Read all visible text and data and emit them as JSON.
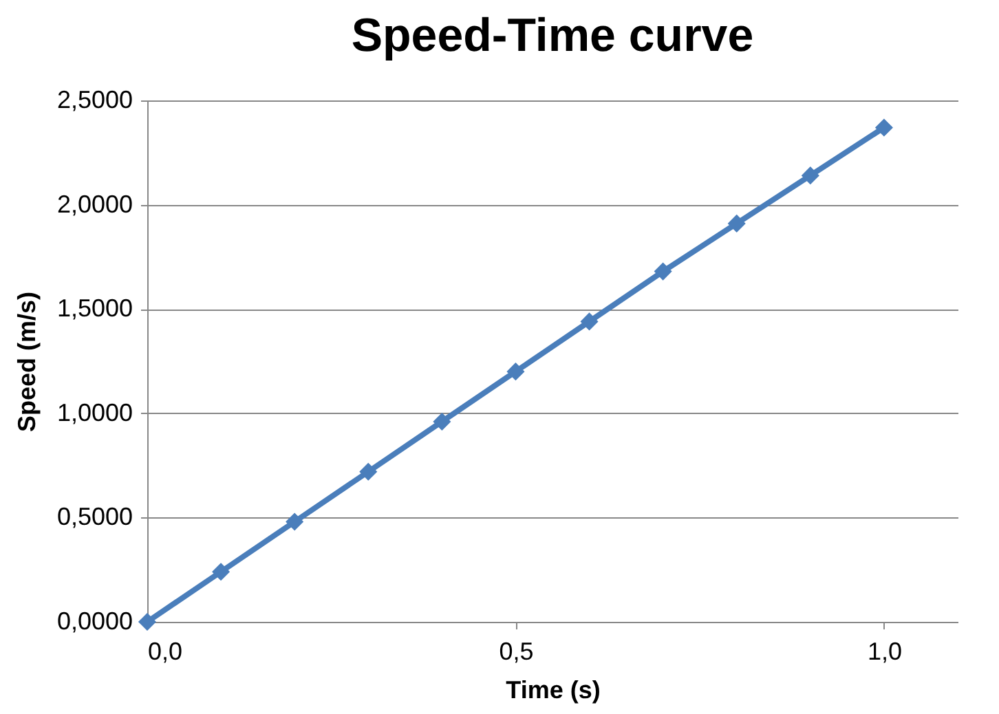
{
  "chart_data": {
    "type": "line",
    "title": "Speed-Time curve",
    "xlabel": "Time (s)",
    "ylabel": "Speed (m/s)",
    "x": [
      0,
      0.1,
      0.2,
      0.3,
      0.4,
      0.5,
      0.6,
      0.7,
      0.8,
      0.9,
      1.0
    ],
    "series": [
      {
        "color": "#4a7ebb",
        "values": [
          0,
          0.24,
          0.48,
          0.72,
          0.96,
          1.2,
          1.44,
          1.68,
          1.91,
          2.14,
          2.37
        ]
      }
    ],
    "xlim": [
      0,
      1.1
    ],
    "xticks": [
      {
        "value": 0,
        "label": "0,0"
      },
      {
        "value": 0.5,
        "label": "0,5"
      },
      {
        "value": 1,
        "label": "1,0"
      }
    ],
    "ylim": [
      0,
      2.5
    ],
    "yticks": [
      {
        "value": 0,
        "label": "0,0000"
      },
      {
        "value": 0.5,
        "label": "0,5000"
      },
      {
        "value": 1,
        "label": "1,0000"
      },
      {
        "value": 1.5,
        "label": "1,5000"
      },
      {
        "value": 2,
        "label": "2,0000"
      },
      {
        "value": 2.5,
        "label": "2,5000"
      }
    ],
    "grid": "y",
    "marker": "diamond",
    "line_style": "solid",
    "legend": false
  }
}
